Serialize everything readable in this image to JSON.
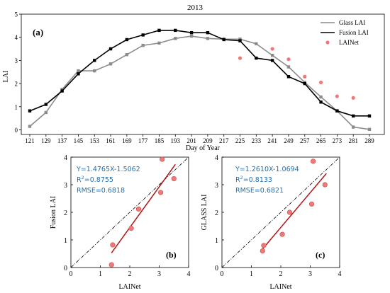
{
  "chart_data": [
    {
      "id": "a",
      "type": "line",
      "panel_label": "(a)",
      "title": "2013",
      "xlabel": "Day of Year",
      "ylabel": "LAI",
      "x": [
        121,
        129,
        137,
        145,
        153,
        161,
        169,
        177,
        185,
        193,
        201,
        209,
        217,
        225,
        233,
        241,
        249,
        257,
        265,
        273,
        281,
        289
      ],
      "x_ticks": [
        "121",
        "129",
        "137",
        "145",
        "153",
        "161",
        "169",
        "177",
        "185",
        "193",
        "201",
        "209",
        "217",
        "225",
        "233",
        "241",
        "249",
        "257",
        "265",
        "273",
        "281",
        "289"
      ],
      "ylim": [
        -0.2,
        5.0
      ],
      "y_ticks": [
        "0",
        "1",
        "2",
        "3",
        "4",
        "5"
      ],
      "legend_position": "top-right",
      "series": [
        {
          "name": "Glass LAI",
          "style": "line-square",
          "color": "#8c8c8c",
          "values": [
            0.15,
            0.75,
            1.75,
            2.55,
            2.55,
            2.85,
            3.25,
            3.65,
            3.75,
            3.95,
            4.05,
            3.95,
            3.92,
            3.92,
            3.72,
            3.22,
            2.72,
            2.05,
            1.42,
            0.82,
            0.12,
            0.02
          ]
        },
        {
          "name": "Fusion LAI",
          "style": "line-square",
          "color": "#000000",
          "values": [
            0.82,
            1.1,
            1.68,
            2.42,
            3.0,
            3.5,
            3.9,
            4.1,
            4.3,
            4.3,
            4.2,
            4.2,
            3.9,
            3.85,
            3.1,
            3.0,
            2.3,
            2.0,
            1.2,
            0.82,
            0.6,
            0.6
          ]
        },
        {
          "name": "LAINet",
          "style": "point",
          "color": "#f07878",
          "x": [
            225,
            241,
            249,
            257,
            265,
            273,
            281
          ],
          "values": [
            3.1,
            3.5,
            3.05,
            2.3,
            2.05,
            1.45,
            1.38
          ]
        }
      ]
    },
    {
      "id": "b",
      "type": "scatter",
      "panel_label": "(b)",
      "xlabel": "LAINet",
      "ylabel": "Fusion LAI",
      "xlim": [
        0,
        4
      ],
      "ylim": [
        0,
        4
      ],
      "x_ticks": [
        "0",
        "1",
        "2",
        "3",
        "4"
      ],
      "y_ticks": [
        "0",
        "1",
        "2",
        "3",
        "4"
      ],
      "annotations": [
        "Y=1.4765X-1.5062",
        "R",
        "2",
        "=0.8755",
        "RMSE=0.6818"
      ],
      "fit": {
        "slope": 1.4765,
        "intercept": -1.5062,
        "x_range": [
          1.38,
          3.55
        ],
        "color": "#b01414"
      },
      "one_to_one": true,
      "points": {
        "x": [
          1.38,
          1.42,
          2.05,
          2.3,
          3.05,
          3.1,
          3.5
        ],
        "y": [
          0.1,
          0.82,
          1.42,
          2.12,
          2.72,
          3.92,
          3.22
        ]
      }
    },
    {
      "id": "c",
      "type": "scatter",
      "panel_label": "(c)",
      "xlabel": "LAINet",
      "ylabel": "GLASS LAI",
      "xlim": [
        0,
        4
      ],
      "ylim": [
        0,
        4
      ],
      "x_ticks": [
        "0",
        "1",
        "2",
        "3",
        "4"
      ],
      "y_ticks": [
        "0",
        "1",
        "2",
        "3",
        "4"
      ],
      "annotations": [
        "Y=1.2610X-1.0694",
        "R",
        "2",
        "=0.8133",
        "RMSE=0.6821"
      ],
      "fit": {
        "slope": 1.261,
        "intercept": -1.0694,
        "x_range": [
          1.38,
          3.55
        ],
        "color": "#b01414"
      },
      "one_to_one": true,
      "points": {
        "x": [
          1.38,
          1.42,
          2.05,
          2.3,
          3.05,
          3.1,
          3.5
        ],
        "y": [
          0.6,
          0.8,
          1.2,
          2.0,
          2.3,
          3.85,
          3.0
        ]
      }
    }
  ],
  "colors": {
    "point_fill": "#f07878",
    "point_edge": "#c85050",
    "annotation_text": "#1f6fb0",
    "fit_line": "#b01414",
    "glass_line": "#8c8c8c",
    "fusion_line": "#000000"
  }
}
